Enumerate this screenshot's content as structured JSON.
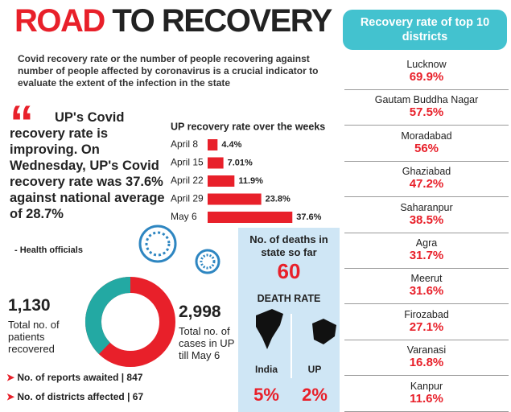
{
  "header": {
    "title_highlight": "ROAD",
    "title": "TO RECOVERY",
    "intro": "Covid recovery rate or the number of people recovering against number of people affected by coronavirus is a crucial indicator to evaluate the extent of the infection in the state"
  },
  "quote": {
    "text": "UP's Covid recovery rate is improving. On Wednesday, UP's Covid recovery rate was 37.6% against national average of 28.7%",
    "source": "- Health officials"
  },
  "districts": {
    "title": "Recovery rate of top 10 districts",
    "rows": [
      [
        "Lucknow",
        "69.9%"
      ],
      [
        "Gautam Buddha Nagar",
        "57.5%"
      ],
      [
        "Moradabad",
        "56%"
      ],
      [
        "Ghaziabad",
        "47.2%"
      ],
      [
        "Saharanpur",
        "38.5%"
      ],
      [
        "Agra",
        "31.7%"
      ],
      [
        "Meerut",
        "31.6%"
      ],
      [
        "Firozabad",
        "27.1%"
      ],
      [
        "Varanasi",
        "16.8%"
      ],
      [
        "Kanpur",
        "11.6%"
      ]
    ]
  },
  "deaths": {
    "label": "No. of deaths in state so far",
    "value": "60",
    "rate_title": "DEATH RATE",
    "india_label": "India",
    "india_rate": "5%",
    "up_label": "UP",
    "up_rate": "2%"
  },
  "bullets": [
    "No. of reports awaited | 847",
    "No. of districts affected | 67"
  ],
  "chart_data": [
    {
      "type": "bar",
      "orientation": "horizontal",
      "title": "UP recovery rate over the weeks",
      "categories": [
        "April 8",
        "April 15",
        "April 22",
        "April 29",
        "May 6"
      ],
      "values": [
        4.4,
        7.01,
        11.9,
        23.8,
        37.6
      ],
      "value_labels": [
        "4.4%",
        "7.01%",
        "11.9%",
        "23.8%",
        "37.6%"
      ],
      "color": "#e8202a"
    },
    {
      "type": "donut",
      "values": [
        1130,
        2998
      ],
      "value_labels": [
        "1,130",
        "2,998"
      ],
      "labels": [
        "Total no. of patients recovered",
        "Total no. of cases in UP till May 6"
      ],
      "colors": [
        "#23a9a3",
        "#e8202a"
      ]
    }
  ]
}
